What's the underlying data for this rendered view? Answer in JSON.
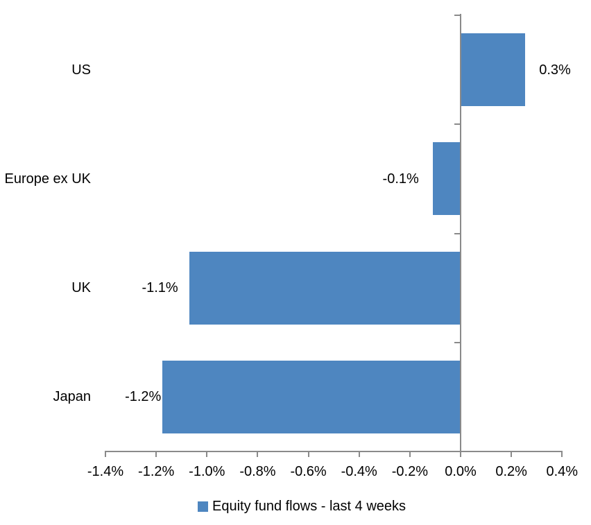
{
  "chart_data": {
    "type": "bar",
    "orientation": "horizontal",
    "title": "",
    "xlabel": "",
    "ylabel": "",
    "categories": [
      "US",
      "Europe ex UK",
      "UK",
      "Japan"
    ],
    "series": [
      {
        "name": "Equity fund flows - last 4 weeks",
        "values": [
          0.255,
          -0.11,
          -1.07,
          -1.175
        ],
        "value_labels": [
          "0.3%",
          "-0.1%",
          "-1.1%",
          "-1.2%"
        ]
      }
    ],
    "values_note": "values estimated from bar lengths in percent; data labels shown rounded to one decimal",
    "xlim": [
      -1.4,
      0.4
    ],
    "x_tick_values": [
      -1.4,
      -1.2,
      -1.0,
      -0.8,
      -0.6,
      -0.4,
      -0.2,
      0.0,
      0.2,
      0.4
    ],
    "x_tick_labels": [
      "-1.4%",
      "-1.2%",
      "-1.0%",
      "-0.8%",
      "-0.6%",
      "-0.4%",
      "-0.2%",
      "0.0%",
      "0.2%",
      "0.4%"
    ],
    "grid": "off",
    "legend_position": "bottom",
    "colors": {
      "bar": "#4e86c0",
      "axis": "#8a8a8a",
      "text": "#000000",
      "background": "#ffffff"
    }
  },
  "legend": {
    "label": "Equity fund flows - last 4 weeks"
  }
}
